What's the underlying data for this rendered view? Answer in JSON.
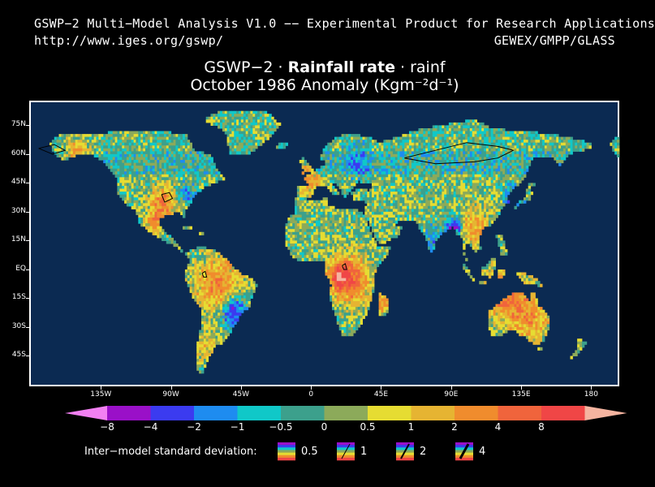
{
  "header": {
    "product_line": "GSWP−2 Multi−Model Analysis V1.0 −− Experimental Product for Research Applications",
    "url": "http://www.iges.org/gswp/",
    "org": "GEWEX/GMPP/GLASS"
  },
  "title": {
    "prefix": "GSWP−2 · ",
    "variable": "Rainfall rate",
    "suffix": " · rainf",
    "line2": "October 1986 Anomaly (Kgm⁻²d⁻¹)"
  },
  "map": {
    "latitude_labels": [
      "75N",
      "60N",
      "45N",
      "30N",
      "15N",
      "EQ",
      "15S",
      "30S",
      "45S"
    ],
    "longitude_labels": [
      "135W",
      "90W",
      "45W",
      "0",
      "45E",
      "90E",
      "135E",
      "180"
    ],
    "ocean_color": "#0b2a52",
    "grid_resolution_deg": 1
  },
  "colorbar": {
    "colors": [
      "#f280f2",
      "#9a10c8",
      "#3b3bf0",
      "#1e8cf0",
      "#10c8c8",
      "#3ca08c",
      "#8caa5a",
      "#e6dc32",
      "#e6b432",
      "#f08c2d",
      "#f0643c",
      "#f04646",
      "#f5b4a0"
    ],
    "labels": [
      "−8",
      "−4",
      "−2",
      "−1",
      "−0.5",
      "0",
      "0.5",
      "1",
      "2",
      "4",
      "8"
    ]
  },
  "stddev_legend": {
    "text": "Inter−model standard deviation:",
    "items": [
      {
        "value": "0.5",
        "line_weight": 0
      },
      {
        "value": "1",
        "line_weight": 1
      },
      {
        "value": "2",
        "line_weight": 2
      },
      {
        "value": "4",
        "line_weight": 3
      }
    ]
  }
}
